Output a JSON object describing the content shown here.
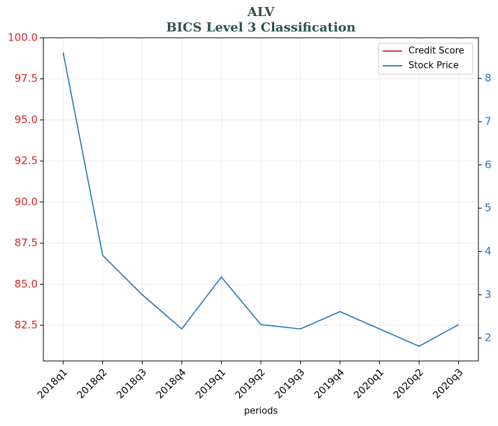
{
  "chart_data": {
    "type": "line",
    "title": "ALV",
    "subtitle": "BICS Level 3 Classification",
    "xlabel": "periods",
    "categories": [
      "2018q1",
      "2018q2",
      "2018q3",
      "2018q4",
      "2019q1",
      "2019q2",
      "2019q3",
      "2019q4",
      "2020q1",
      "2020q2",
      "2020q3"
    ],
    "series": [
      {
        "name": "Credit Score",
        "color": "#d62728",
        "values": [
          null,
          null,
          null,
          null,
          null,
          null,
          null,
          null,
          null,
          null,
          null
        ]
      },
      {
        "name": "Stock Price",
        "color": "#1f77b4",
        "axis": "y2",
        "values": [
          8.6,
          3.91,
          3.0,
          2.21,
          3.41,
          2.31,
          2.21,
          2.61,
          2.21,
          1.81,
          2.31
        ]
      }
    ],
    "ylim": [
      80.33,
      100
    ],
    "yticks": [
      {
        "value": 82.5,
        "label": "82.5"
      },
      {
        "value": 85,
        "label": "85.0"
      },
      {
        "value": 87.5,
        "label": "87.5"
      },
      {
        "value": 90,
        "label": "90.0"
      },
      {
        "value": 92.5,
        "label": "92.5"
      },
      {
        "value": 95,
        "label": "95.0"
      },
      {
        "value": 97.5,
        "label": "97.5"
      },
      {
        "value": 100,
        "label": "100.0"
      }
    ],
    "y2lim": [
      1.47,
      8.94
    ],
    "y2ticks": [
      2,
      3,
      4,
      5,
      6,
      7,
      8
    ],
    "ycolor": "#d62728",
    "y2color": "#1f77b4",
    "grid": true,
    "legend": "upper right"
  }
}
